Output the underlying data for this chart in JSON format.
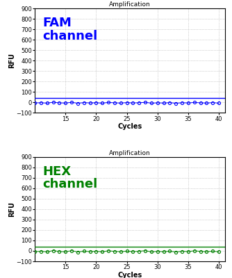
{
  "title": "Amplification",
  "xlabel": "Cycles",
  "ylabel": "RFU",
  "xlim": [
    10,
    41
  ],
  "ylim": [
    -100,
    900
  ],
  "yticks": [
    -100,
    0,
    100,
    200,
    300,
    400,
    500,
    600,
    700,
    800,
    900
  ],
  "xticks": [
    15,
    20,
    25,
    30,
    35,
    40
  ],
  "x_start": 10,
  "x_end": 40,
  "fam_color": "#0000FF",
  "hex_color": "#008000",
  "fam_label": "FAM\nchannel",
  "hex_label": "HEX\nchannel",
  "threshold_y": 40,
  "bg_color": "#ffffff",
  "grid_color": "#aaaaaa",
  "fam_scatter": [
    -5,
    -3,
    -7,
    2,
    -4,
    -6,
    1,
    -8,
    -2,
    -5,
    -3,
    -7,
    0,
    -4,
    -6,
    -2,
    -5,
    -3,
    1,
    -7,
    -4,
    -6,
    -2,
    -8,
    -3,
    -5,
    0,
    -4,
    -6,
    -2,
    -7
  ],
  "hex_scatter": [
    -8,
    -4,
    -10,
    3,
    -6,
    -9,
    2,
    -11,
    -3,
    -7,
    -4,
    -9,
    1,
    -5,
    -8,
    -3,
    -7,
    -4,
    2,
    -10,
    -5,
    -8,
    -3,
    -11,
    -4,
    -7,
    1,
    -5,
    -8,
    -3,
    -9
  ]
}
